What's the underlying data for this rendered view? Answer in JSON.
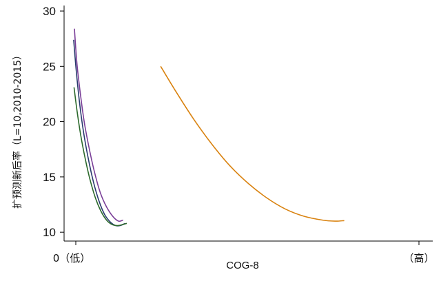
{
  "chart_data": {
    "type": "line",
    "title": "",
    "xlabel": "COG-8",
    "ylabel": "扩预测新后率（L=10,2010-2015）",
    "x_tick_labels": [
      "0（低）",
      "（高）"
    ],
    "y_ticks": [
      10,
      15,
      20,
      25,
      30
    ],
    "xlim": [
      0,
      10
    ],
    "ylim": [
      9.2,
      30.5
    ],
    "grid": false,
    "legend": "none",
    "series": [
      {
        "color": "#7a3f98",
        "points": [
          [
            0.28,
            28.4
          ],
          [
            0.35,
            25.2
          ],
          [
            0.45,
            22.3
          ],
          [
            0.55,
            19.9
          ],
          [
            0.68,
            17.6
          ],
          [
            0.82,
            15.5
          ],
          [
            0.98,
            13.6
          ],
          [
            1.15,
            12.3
          ],
          [
            1.33,
            11.4
          ],
          [
            1.48,
            11.0
          ],
          [
            1.6,
            11.1
          ]
        ]
      },
      {
        "color": "#2a3b6e",
        "points": [
          [
            0.26,
            27.4
          ],
          [
            0.33,
            24.6
          ],
          [
            0.42,
            21.7
          ],
          [
            0.53,
            19.0
          ],
          [
            0.66,
            16.6
          ],
          [
            0.8,
            14.5
          ],
          [
            0.95,
            12.8
          ],
          [
            1.1,
            11.6
          ],
          [
            1.26,
            10.9
          ],
          [
            1.4,
            10.6
          ],
          [
            1.52,
            10.6
          ],
          [
            1.66,
            10.8
          ]
        ]
      },
      {
        "color": "#2d6a2d",
        "points": [
          [
            0.27,
            23.1
          ],
          [
            0.35,
            21.0
          ],
          [
            0.45,
            18.8
          ],
          [
            0.57,
            16.7
          ],
          [
            0.7,
            14.8
          ],
          [
            0.85,
            13.1
          ],
          [
            1.0,
            11.9
          ],
          [
            1.15,
            11.1
          ],
          [
            1.3,
            10.7
          ],
          [
            1.45,
            10.6
          ],
          [
            1.6,
            10.7
          ],
          [
            1.7,
            10.8
          ]
        ]
      },
      {
        "color": "#d9820f",
        "points": [
          [
            2.62,
            25.0
          ],
          [
            3.0,
            22.9
          ],
          [
            3.5,
            20.3
          ],
          [
            4.0,
            18.0
          ],
          [
            4.5,
            16.0
          ],
          [
            5.0,
            14.4
          ],
          [
            5.5,
            13.1
          ],
          [
            6.0,
            12.1
          ],
          [
            6.5,
            11.45
          ],
          [
            7.0,
            11.1
          ],
          [
            7.35,
            11.0
          ],
          [
            7.6,
            11.05
          ]
        ]
      }
    ]
  }
}
